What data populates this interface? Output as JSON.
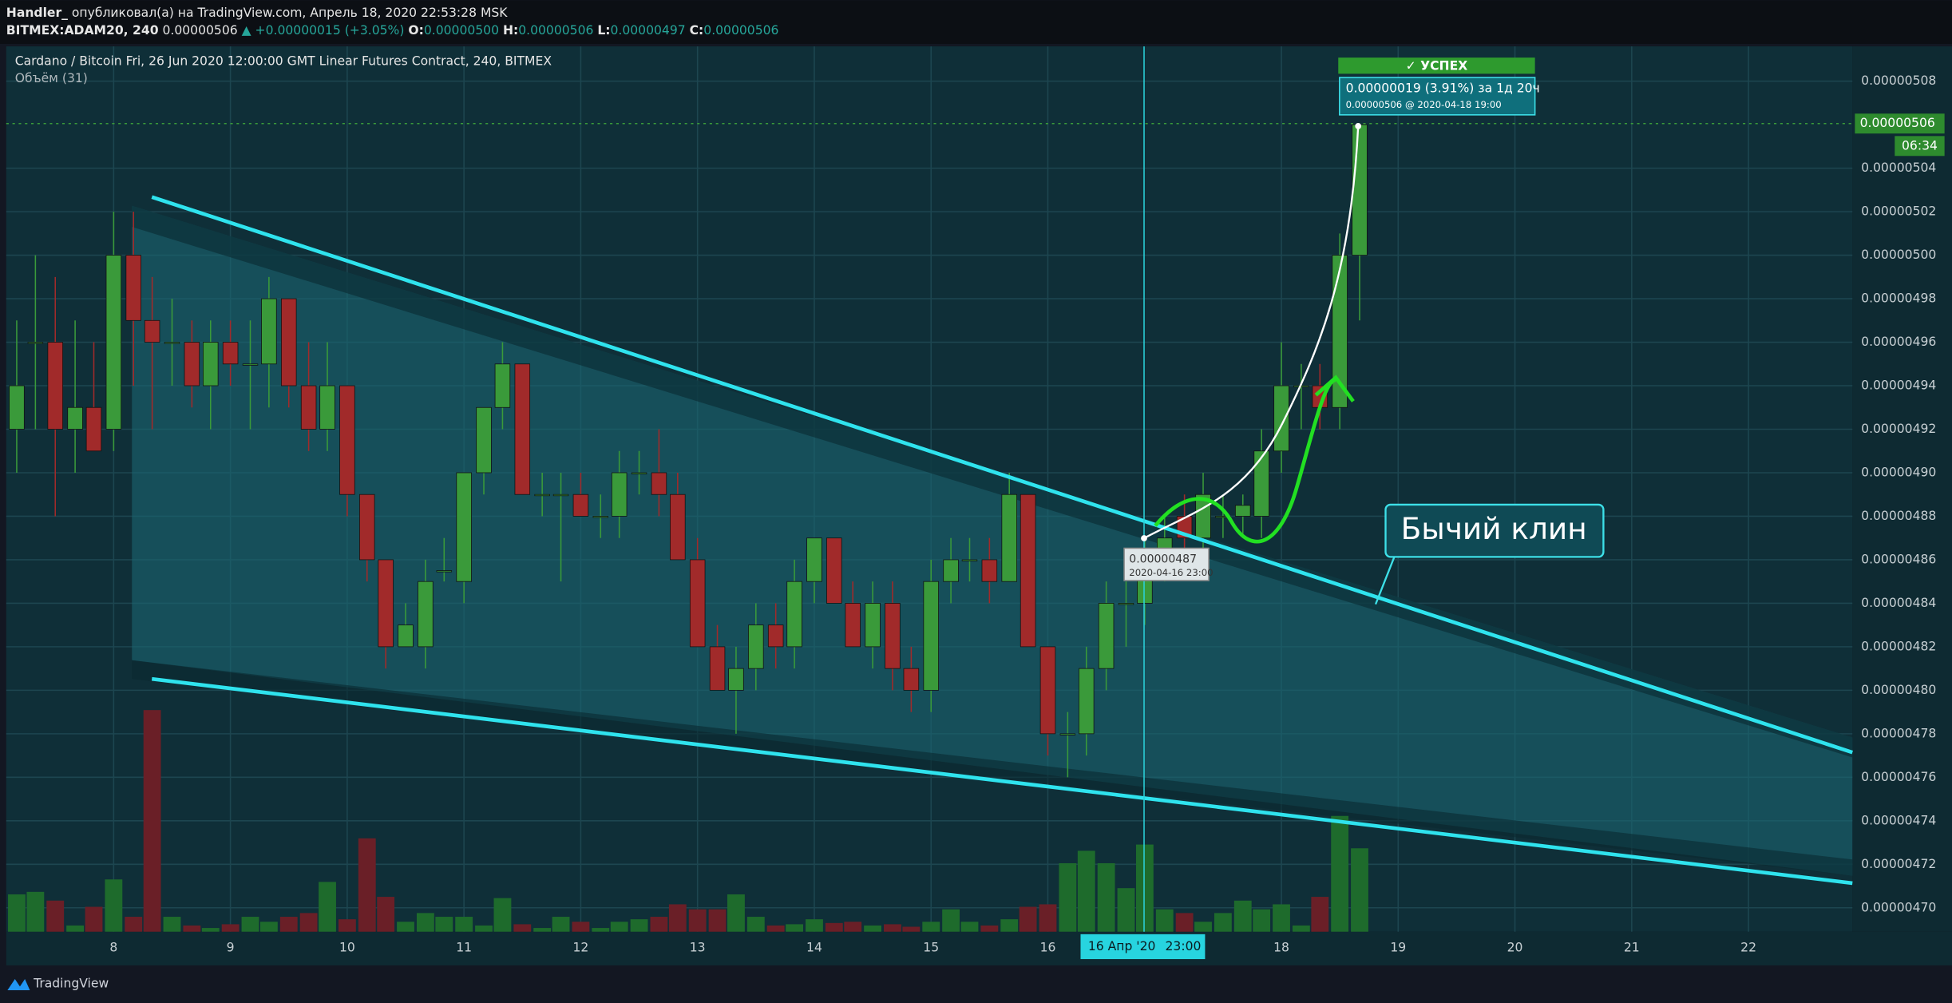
{
  "header": {
    "author": "Handler_",
    "published": "опубликовал(а) на TradingView.com, Апрель 18, 2020 22:53:28 MSK",
    "symbol": "BITMEX:ADAM20, 240",
    "last": "0.00000506",
    "change": "▲ +0.00000015 (+3.05%)",
    "o_label": "O:",
    "o": "0.00000500",
    "h_label": "H:",
    "h": "0.00000506",
    "l_label": "L:",
    "l": "0.00000497",
    "c_label": "C:",
    "c": "0.00000506"
  },
  "chart_data": {
    "type": "candlestick",
    "title": "Cardano / Bitcoin Fri, 26 Jun 2020 12:00:00 GMT Linear Futures Contract, 240, BITMEX",
    "subtitle": "Объём (31)",
    "x": [
      7.17,
      7.33,
      7.5,
      7.67,
      7.83,
      8,
      8.17,
      8.33,
      8.5,
      8.67,
      8.83,
      9,
      9.17,
      9.33,
      9.5,
      9.67,
      9.83,
      10,
      10.17,
      10.33,
      10.5,
      10.67,
      10.83,
      11,
      11.17,
      11.33,
      11.5,
      11.67,
      11.83,
      12,
      12.17,
      12.33,
      12.5,
      12.67,
      12.83,
      13,
      13.17,
      13.33,
      13.5,
      13.67,
      13.83,
      14,
      14.17,
      14.33,
      14.5,
      14.67,
      14.83,
      15,
      15.17,
      15.33,
      15.5,
      15.67,
      15.83,
      16,
      16.17,
      16.33,
      16.5,
      16.67,
      16.83,
      17,
      17.17,
      17.33,
      17.5,
      17.67,
      17.83,
      18,
      18.17,
      18.33,
      18.5,
      18.67
    ],
    "open": [
      4.92e-06,
      4.96e-06,
      4.96e-06,
      4.92e-06,
      4.93e-06,
      4.92e-06,
      5e-06,
      4.97e-06,
      4.96e-06,
      4.96e-06,
      4.94e-06,
      4.96e-06,
      4.95e-06,
      4.95e-06,
      4.98e-06,
      4.94e-06,
      4.92e-06,
      4.94e-06,
      4.89e-06,
      4.86e-06,
      4.82e-06,
      4.82e-06,
      4.855e-06,
      4.85e-06,
      4.9e-06,
      4.93e-06,
      4.95e-06,
      4.89e-06,
      4.89e-06,
      4.89e-06,
      4.88e-06,
      4.88e-06,
      4.9e-06,
      4.9e-06,
      4.89e-06,
      4.86e-06,
      4.82e-06,
      4.8e-06,
      4.81e-06,
      4.83e-06,
      4.82e-06,
      4.85e-06,
      4.87e-06,
      4.84e-06,
      4.82e-06,
      4.84e-06,
      4.81e-06,
      4.8e-06,
      4.85e-06,
      4.86e-06,
      4.86e-06,
      4.85e-06,
      4.89e-06,
      4.82e-06,
      4.78e-06,
      4.78e-06,
      4.81e-06,
      4.84e-06,
      4.84e-06,
      4.86e-06,
      4.88e-06,
      4.87e-06,
      4.88e-06,
      4.88e-06,
      4.88e-06,
      4.91e-06,
      4.94e-06,
      4.94e-06,
      4.93e-06,
      5e-06
    ],
    "high": [
      4.97e-06,
      5e-06,
      4.99e-06,
      4.97e-06,
      4.96e-06,
      5.02e-06,
      5.02e-06,
      4.99e-06,
      4.98e-06,
      4.97e-06,
      4.97e-06,
      4.97e-06,
      4.97e-06,
      4.99e-06,
      4.98e-06,
      4.96e-06,
      4.96e-06,
      4.94e-06,
      4.89e-06,
      4.86e-06,
      4.84e-06,
      4.86e-06,
      4.87e-06,
      4.9e-06,
      4.93e-06,
      4.96e-06,
      4.95e-06,
      4.9e-06,
      4.9e-06,
      4.9e-06,
      4.89e-06,
      4.91e-06,
      4.91e-06,
      4.92e-06,
      4.9e-06,
      4.87e-06,
      4.83e-06,
      4.82e-06,
      4.84e-06,
      4.84e-06,
      4.86e-06,
      4.87e-06,
      4.87e-06,
      4.85e-06,
      4.85e-06,
      4.85e-06,
      4.82e-06,
      4.86e-06,
      4.87e-06,
      4.87e-06,
      4.87e-06,
      4.9e-06,
      4.89e-06,
      4.82e-06,
      4.79e-06,
      4.82e-06,
      4.85e-06,
      4.85e-06,
      4.87e-06,
      4.88e-06,
      4.89e-06,
      4.9e-06,
      4.89e-06,
      4.89e-06,
      4.92e-06,
      4.96e-06,
      4.95e-06,
      4.95e-06,
      5.01e-06,
      5.06e-06
    ],
    "low": [
      4.9e-06,
      4.92e-06,
      4.88e-06,
      4.9e-06,
      4.91e-06,
      4.91e-06,
      4.94e-06,
      4.92e-06,
      4.94e-06,
      4.93e-06,
      4.92e-06,
      4.94e-06,
      4.92e-06,
      4.93e-06,
      4.93e-06,
      4.91e-06,
      4.91e-06,
      4.88e-06,
      4.85e-06,
      4.81e-06,
      4.82e-06,
      4.81e-06,
      4.85e-06,
      4.84e-06,
      4.89e-06,
      4.92e-06,
      4.89e-06,
      4.88e-06,
      4.85e-06,
      4.88e-06,
      4.87e-06,
      4.87e-06,
      4.89e-06,
      4.88e-06,
      4.86e-06,
      4.82e-06,
      4.8e-06,
      4.78e-06,
      4.8e-06,
      4.81e-06,
      4.81e-06,
      4.84e-06,
      4.84e-06,
      4.82e-06,
      4.81e-06,
      4.8e-06,
      4.79e-06,
      4.79e-06,
      4.84e-06,
      4.85e-06,
      4.84e-06,
      4.85e-06,
      4.82e-06,
      4.77e-06,
      4.76e-06,
      4.77e-06,
      4.8e-06,
      4.82e-06,
      4.83e-06,
      4.85e-06,
      4.86e-06,
      4.86e-06,
      4.87e-06,
      4.87e-06,
      4.87e-06,
      4.9e-06,
      4.92e-06,
      4.92e-06,
      4.92e-06,
      4.97e-06
    ],
    "close": [
      4.94e-06,
      4.96e-06,
      4.92e-06,
      4.93e-06,
      4.91e-06,
      5e-06,
      4.97e-06,
      4.96e-06,
      4.96e-06,
      4.94e-06,
      4.96e-06,
      4.95e-06,
      4.95e-06,
      4.98e-06,
      4.94e-06,
      4.92e-06,
      4.94e-06,
      4.89e-06,
      4.86e-06,
      4.82e-06,
      4.83e-06,
      4.85e-06,
      4.855e-06,
      4.9e-06,
      4.93e-06,
      4.95e-06,
      4.89e-06,
      4.89e-06,
      4.89e-06,
      4.88e-06,
      4.88e-06,
      4.9e-06,
      4.9e-06,
      4.89e-06,
      4.86e-06,
      4.82e-06,
      4.8e-06,
      4.81e-06,
      4.83e-06,
      4.82e-06,
      4.85e-06,
      4.87e-06,
      4.84e-06,
      4.82e-06,
      4.84e-06,
      4.81e-06,
      4.8e-06,
      4.85e-06,
      4.86e-06,
      4.86e-06,
      4.85e-06,
      4.89e-06,
      4.82e-06,
      4.78e-06,
      4.78e-06,
      4.81e-06,
      4.84e-06,
      4.84e-06,
      4.86e-06,
      4.87e-06,
      4.87e-06,
      4.89e-06,
      4.88e-06,
      4.885e-06,
      4.91e-06,
      4.94e-06,
      4.94e-06,
      4.93e-06,
      5e-06,
      5.06e-06
    ],
    "volume": [
      30,
      32,
      25,
      5,
      20,
      42,
      12,
      178,
      12,
      5,
      3,
      6,
      12,
      8,
      12,
      15,
      40,
      10,
      75,
      28,
      8,
      15,
      12,
      12,
      5,
      27,
      6,
      3,
      12,
      8,
      3,
      8,
      10,
      12,
      22,
      18,
      18,
      30,
      12,
      5,
      6,
      10,
      7,
      8,
      5,
      6,
      4,
      8,
      18,
      8,
      5,
      10,
      20,
      22,
      55,
      65,
      55,
      35,
      70,
      18,
      15,
      8,
      15,
      25,
      18,
      22,
      5,
      28,
      93,
      67
    ],
    "up_color": "#3a9a3a",
    "down_color": "#a12a2a",
    "volume_up_color": "#1e6b2c",
    "volume_down_color": "#6a1f27",
    "xlim": [
      7.08,
      22.89
    ],
    "ylim": [
      4.689e-06,
      5.096e-06
    ],
    "xticks": [
      8,
      9,
      10,
      11,
      12,
      13,
      14,
      15,
      16,
      18,
      19,
      20,
      21,
      22
    ],
    "yticks": [
      {
        "value": 4.7e-06,
        "label": "0.00000470"
      },
      {
        "value": 4.72e-06,
        "label": "0.00000472"
      },
      {
        "value": 4.74e-06,
        "label": "0.00000474"
      },
      {
        "value": 4.76e-06,
        "label": "0.00000476"
      },
      {
        "value": 4.78e-06,
        "label": "0.00000478"
      },
      {
        "value": 4.8e-06,
        "label": "0.00000480"
      },
      {
        "value": 4.82e-06,
        "label": "0.00000482"
      },
      {
        "value": 4.84e-06,
        "label": "0.00000484"
      },
      {
        "value": 4.86e-06,
        "label": "0.00000486"
      },
      {
        "value": 4.88e-06,
        "label": "0.00000488"
      },
      {
        "value": 4.9e-06,
        "label": "0.00000490"
      },
      {
        "value": 4.92e-06,
        "label": "0.00000492"
      },
      {
        "value": 4.94e-06,
        "label": "0.00000494"
      },
      {
        "value": 4.96e-06,
        "label": "0.00000496"
      },
      {
        "value": 4.98e-06,
        "label": "0.00000498"
      },
      {
        "value": 5e-06,
        "label": "0.00000500"
      },
      {
        "value": 5.02e-06,
        "label": "0.00000502"
      },
      {
        "value": 5.04e-06,
        "label": "0.00000504"
      },
      {
        "value": 5.08e-06,
        "label": "0.00000508"
      }
    ],
    "grid": true,
    "annotations": {
      "success": "✓ УСПЕХ",
      "measure": "0.00000019 (3.91%) за 1д 20ч",
      "measure_detail": "0.00000506 @ 2020-04-18  19:00",
      "start_price": "0.00000487",
      "start_time": "2020-04-16 23:00",
      "pattern": "Бычий клин",
      "price_tag": "0.00000506",
      "countdown": "06:34",
      "cross_date": "16 Апр '20",
      "cross_time": "23:00"
    }
  },
  "footer": {
    "brand": "TradingView"
  }
}
